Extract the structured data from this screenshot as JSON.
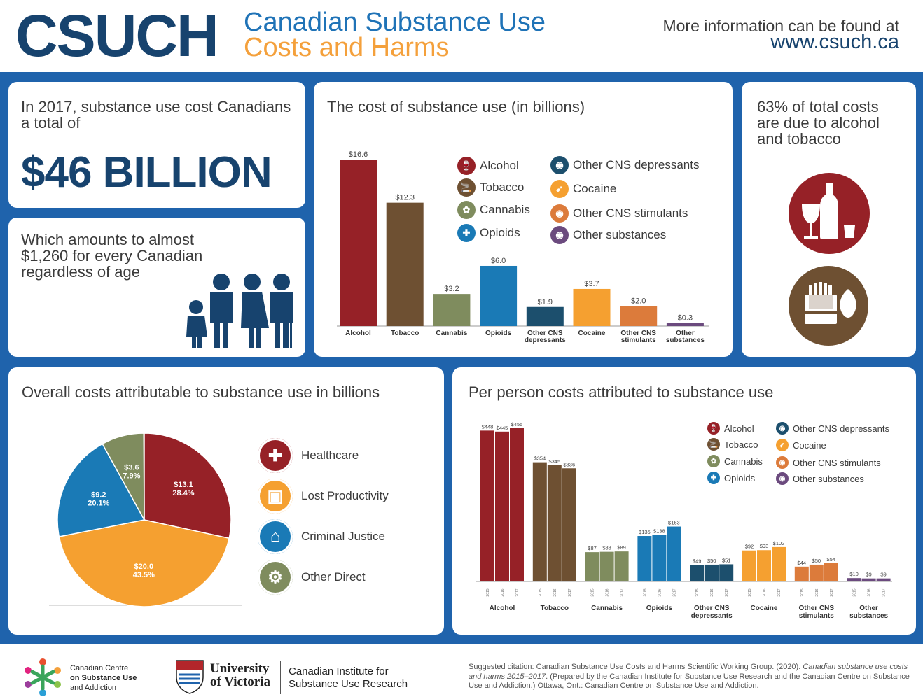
{
  "header": {
    "logo": "CSUCH",
    "title_line1": "Canadian Substance Use",
    "title_line2": "Costs and Harms",
    "more_info": "More information can be found at",
    "url": "www.csuch.ca"
  },
  "total_card": {
    "intro": "In 2017, substance use cost Canadians a total of",
    "big_number": "$46 BILLION"
  },
  "per_canadian_card": {
    "text": "Which amounts to almost $1,260 for every Canadian regardless of age"
  },
  "alcohol_tobacco_card": {
    "text": "63% of total costs are due to alcohol and tobacco"
  },
  "colors": {
    "alcohol": "#962127",
    "tobacco": "#6e5032",
    "cannabis": "#7f8c5e",
    "opioids": "#1a7ab6",
    "cns_depressants": "#1c4f6d",
    "cocaine": "#f5a030",
    "cns_stimulants": "#dc7b3b",
    "other": "#6b4a7e"
  },
  "legend": {
    "items": [
      {
        "label": "Alcohol",
        "icon": "alcohol-icon",
        "color": "#962127",
        "glyph": "🍷"
      },
      {
        "label": "Tobacco",
        "icon": "tobacco-icon",
        "color": "#6e5032",
        "glyph": "🚬"
      },
      {
        "label": "Cannabis",
        "icon": "cannabis-icon",
        "color": "#7f8c5e",
        "glyph": "✿"
      },
      {
        "label": "Opioids",
        "icon": "opioids-icon",
        "color": "#1a7ab6",
        "glyph": "✚"
      },
      {
        "label": "Other CNS depressants",
        "icon": "brain-icon",
        "color": "#1c4f6d",
        "glyph": "◉"
      },
      {
        "label": "Cocaine",
        "icon": "cocaine-icon",
        "color": "#f5a030",
        "glyph": "➹"
      },
      {
        "label": "Other CNS stimulants",
        "icon": "stimulant-icon",
        "color": "#dc7b3b",
        "glyph": "◉"
      },
      {
        "label": "Other substances",
        "icon": "other-substances-icon",
        "color": "#6b4a7e",
        "glyph": "◉"
      }
    ]
  },
  "pie_legend": [
    {
      "label": "Healthcare",
      "icon": "healthcare-icon",
      "color": "#962127",
      "glyph": "✚"
    },
    {
      "label": "Lost Productivity",
      "icon": "productivity-icon",
      "color": "#f5a030",
      "glyph": "▣"
    },
    {
      "label": "Criminal Justice",
      "icon": "justice-icon",
      "color": "#1a7ab6",
      "glyph": "⌂"
    },
    {
      "label": "Other Direct",
      "icon": "other-direct-icon",
      "color": "#7f8c5e",
      "glyph": "⚙"
    }
  ],
  "chart_data": [
    {
      "type": "bar",
      "title": "The cost of substance use (in billions)",
      "categories": [
        "Alcohol",
        "Tobacco",
        "Cannabis",
        "Opioids",
        "Other CNS depressants",
        "Cocaine",
        "Other CNS stimulants",
        "Other substances"
      ],
      "category_lines": [
        [
          "Alcohol"
        ],
        [
          "Tobacco"
        ],
        [
          "Cannabis"
        ],
        [
          "Opioids"
        ],
        [
          "Other CNS",
          "depressants"
        ],
        [
          "Cocaine"
        ],
        [
          "Other CNS",
          "stimulants"
        ],
        [
          "Other",
          "substances"
        ]
      ],
      "values": [
        16.6,
        12.3,
        3.2,
        6.0,
        1.9,
        3.7,
        2.0,
        0.3
      ],
      "value_labels": [
        "$16.6",
        "$12.3",
        "$3.2",
        "$6.0",
        "$1.9",
        "$3.7",
        "$2.0",
        "$0.3"
      ],
      "colors": [
        "#962127",
        "#6e5032",
        "#7f8c5e",
        "#1a7ab6",
        "#1c4f6d",
        "#f5a030",
        "#dc7b3b",
        "#6b4a7e"
      ],
      "ylim": [
        0,
        16.6
      ],
      "xlabel": "",
      "ylabel": ""
    },
    {
      "type": "pie",
      "title": "Overall costs attributable to substance use in billions",
      "labels": [
        "Healthcare",
        "Lost Productivity",
        "Criminal Justice",
        "Other Direct"
      ],
      "values": [
        13.1,
        20.0,
        9.2,
        3.6
      ],
      "value_labels": [
        "$13.1",
        "$20.0",
        "$9.2",
        "$3.6"
      ],
      "percent_labels": [
        "28.4%",
        "43.5%",
        "20.1%",
        "7.9%"
      ],
      "percents": [
        28.4,
        43.5,
        20.1,
        7.9
      ],
      "colors": [
        "#962127",
        "#f5a030",
        "#1a7ab6",
        "#7f8c5e"
      ]
    },
    {
      "type": "bar",
      "title": "Per person costs attributed to substance use",
      "categories": [
        "Alcohol",
        "Tobacco",
        "Cannabis",
        "Opioids",
        "Other CNS depressants",
        "Cocaine",
        "Other CNS stimulants",
        "Other substances"
      ],
      "category_lines": [
        [
          "Alcohol"
        ],
        [
          "Tobacco"
        ],
        [
          "Cannabis"
        ],
        [
          "Opioids"
        ],
        [
          "Other CNS",
          "depressants"
        ],
        [
          "Cocaine"
        ],
        [
          "Other CNS",
          "stimulants"
        ],
        [
          "Other",
          "substances"
        ]
      ],
      "years": [
        "2015",
        "2016",
        "2017"
      ],
      "values": [
        [
          448,
          445,
          455
        ],
        [
          354,
          345,
          336
        ],
        [
          87,
          88,
          89
        ],
        [
          135,
          138,
          163
        ],
        [
          49,
          50,
          51
        ],
        [
          92,
          93,
          102
        ],
        [
          44,
          50,
          54
        ],
        [
          10,
          9,
          9
        ]
      ],
      "value_labels": [
        [
          "$448",
          "$445",
          "$455"
        ],
        [
          "$354",
          "$345",
          "$336"
        ],
        [
          "$87",
          "$88",
          "$89"
        ],
        [
          "$135",
          "$138",
          "$163"
        ],
        [
          "$49",
          "$50",
          "$51"
        ],
        [
          "$92",
          "$93",
          "$102"
        ],
        [
          "$44",
          "$50",
          "$54"
        ],
        [
          "$10",
          "$9",
          "$9"
        ]
      ],
      "colors": [
        "#962127",
        "#6e5032",
        "#7f8c5e",
        "#1a7ab6",
        "#1c4f6d",
        "#f5a030",
        "#dc7b3b",
        "#6b4a7e"
      ],
      "ylim": [
        0,
        455
      ],
      "xlabel": "",
      "ylabel": ""
    }
  ],
  "footer": {
    "ccsa_line1": "Canadian Centre",
    "ccsa_line2": "on Substance Use",
    "ccsa_line3": "and Addiction",
    "uvic_line1": "University",
    "uvic_line2": "of Victoria",
    "cisur_line1": "Canadian Institute for",
    "cisur_line2": "Substance Use Research",
    "citation_pre": "Suggested citation: Canadian Substance Use Costs and Harms Scientific Working Group. (2020). ",
    "citation_italic": "Canadian substance use costs and harms 2015–2017",
    "citation_post": ". (Prepared by the Canadian Institute for Substance Use Research and the Canadian Centre on Substance Use and Addiction.) Ottawa, Ont.: Canadian Centre on Substance Use and Addiction."
  }
}
